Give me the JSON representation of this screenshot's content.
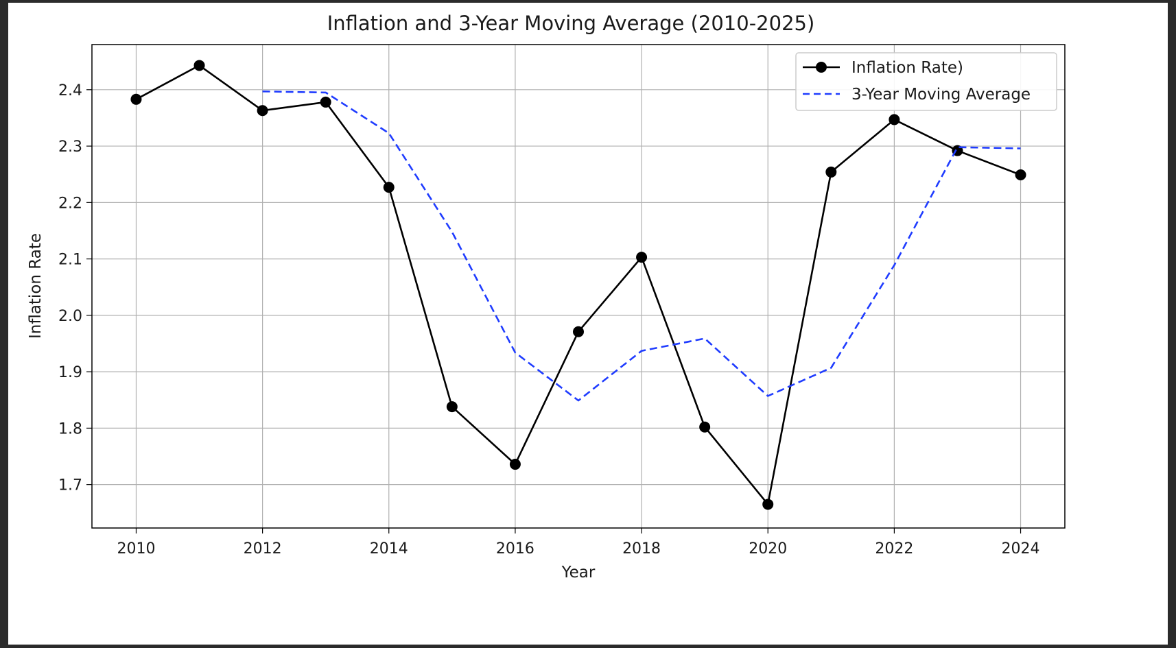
{
  "chart_data": {
    "type": "line",
    "title": "Inflation and 3-Year Moving Average (2010-2025)",
    "xlabel": "Year",
    "ylabel": "Inflation Rate",
    "x": [
      2010,
      2011,
      2012,
      2013,
      2014,
      2015,
      2016,
      2017,
      2018,
      2019,
      2020,
      2021,
      2022,
      2023,
      2024
    ],
    "xlim": [
      2009.3,
      2024.7
    ],
    "ylim": [
      1.623,
      2.48
    ],
    "xticks": [
      "2010",
      "2012",
      "2014",
      "2016",
      "2018",
      "2020",
      "2022",
      "2024"
    ],
    "yticks": [
      "1.7",
      "1.8",
      "1.9",
      "2.0",
      "2.1",
      "2.2",
      "2.3",
      "2.4"
    ],
    "grid": true,
    "legend_position": "top-right",
    "series": [
      {
        "name": "Inflation Rate)",
        "color": "#000000",
        "style": "solid",
        "marker": "circle",
        "values": [
          2.383,
          2.443,
          2.363,
          2.378,
          2.227,
          1.838,
          1.736,
          1.971,
          2.103,
          1.802,
          1.665,
          2.254,
          2.347,
          2.292,
          2.249
        ]
      },
      {
        "name": "3-Year Moving Average",
        "color": "#1f3cff",
        "style": "dashed",
        "marker": "none",
        "values": [
          null,
          null,
          2.397,
          2.395,
          2.323,
          2.148,
          1.934,
          1.849,
          1.937,
          1.959,
          1.857,
          1.907,
          2.089,
          2.298,
          2.296
        ]
      }
    ]
  }
}
